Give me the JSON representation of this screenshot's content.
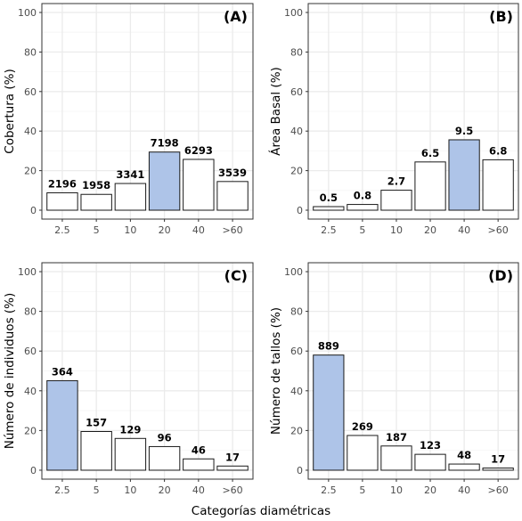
{
  "figure": {
    "xlabel": "Categorías diamétricas"
  },
  "chart_data": [
    {
      "type": "bar",
      "tag": "(A)",
      "ylabel": "Cobertura (%)",
      "categories": [
        "2.5",
        "5",
        "10",
        "20",
        "40",
        ">60"
      ],
      "values": [
        8.8,
        8.0,
        13.5,
        29.4,
        25.7,
        14.5
      ],
      "value_labels": [
        "2196",
        "1958",
        "3341",
        "7198",
        "6293",
        "3539"
      ],
      "highlight_index": 3,
      "ylim": [
        0,
        100
      ],
      "yticks": [
        0,
        20,
        40,
        60,
        80,
        100
      ],
      "grid": true
    },
    {
      "type": "bar",
      "tag": "(B)",
      "ylabel": "Área Basal (%)",
      "categories": [
        "2.5",
        "5",
        "10",
        "20",
        "40",
        ">60"
      ],
      "values": [
        1.8,
        2.9,
        10.1,
        24.4,
        35.6,
        25.5
      ],
      "value_labels": [
        "0.5",
        "0.8",
        "2.7",
        "6.5",
        "9.5",
        "6.8"
      ],
      "highlight_index": 4,
      "ylim": [
        0,
        100
      ],
      "yticks": [
        0,
        20,
        40,
        60,
        80,
        100
      ],
      "grid": true
    },
    {
      "type": "bar",
      "tag": "(C)",
      "ylabel": "Número de individuos (%)",
      "categories": [
        "2.5",
        "5",
        "10",
        "20",
        "40",
        ">60"
      ],
      "values": [
        45.1,
        19.5,
        16.0,
        11.9,
        5.7,
        2.1
      ],
      "value_labels": [
        "364",
        "157",
        "129",
        "96",
        "46",
        "17"
      ],
      "highlight_index": 0,
      "ylim": [
        0,
        100
      ],
      "yticks": [
        0,
        20,
        40,
        60,
        80,
        100
      ],
      "grid": true
    },
    {
      "type": "bar",
      "tag": "(D)",
      "ylabel": "Número de tallos (%)",
      "categories": [
        "2.5",
        "5",
        "10",
        "20",
        "40",
        ">60"
      ],
      "values": [
        58.0,
        17.5,
        12.2,
        8.0,
        3.1,
        1.1
      ],
      "value_labels": [
        "889",
        "269",
        "187",
        "123",
        "48",
        "17"
      ],
      "highlight_index": 0,
      "ylim": [
        0,
        100
      ],
      "yticks": [
        0,
        20,
        40,
        60,
        80,
        100
      ],
      "grid": true
    }
  ],
  "colors": {
    "highlight_fill": "#aec4e8",
    "bar_fill": "#ffffff",
    "bar_stroke": "#1a1a1a",
    "panel_border": "#333333",
    "grid_major": "#ebebeb",
    "grid_minor": "#f5f5f5",
    "tick_text": "#4d4d4d"
  }
}
